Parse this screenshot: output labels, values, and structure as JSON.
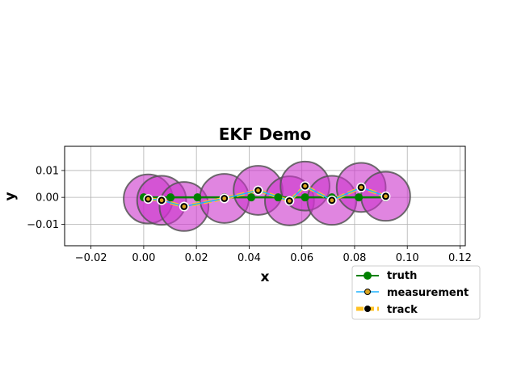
{
  "chart_data": {
    "type": "line",
    "title": "EKF Demo",
    "xlabel": "x",
    "ylabel": "y",
    "xlim": [
      -0.03,
      0.122
    ],
    "ylim": [
      -0.018,
      0.019
    ],
    "xticks": [
      -0.02,
      0.0,
      0.02,
      0.04,
      0.06,
      0.08,
      0.1,
      0.12
    ],
    "xtick_labels": [
      "−0.02",
      "0.00",
      "0.02",
      "0.04",
      "0.06",
      "0.08",
      "0.10",
      "0.12"
    ],
    "yticks": [
      -0.01,
      0.0,
      0.01
    ],
    "ytick_labels": [
      "−0.01",
      "0.00",
      "0.01"
    ],
    "grid": true,
    "legend_position": "lower-right, outside below axes",
    "series": [
      {
        "name": "truth",
        "color": "#008000",
        "x": [
          0.0,
          0.0102,
          0.0204,
          0.0306,
          0.0408,
          0.051,
          0.0612,
          0.0714,
          0.0816,
          0.0918
        ],
        "y": [
          0.0,
          0.0,
          0.0,
          0.0,
          0.0,
          0.0,
          0.0,
          0.0,
          0.0,
          0.0
        ]
      },
      {
        "name": "measurement",
        "color": "#1eb4ff",
        "marker_face": "#daa520",
        "x": [
          0.0017,
          0.0068,
          0.0153,
          0.0306,
          0.0434,
          0.0553,
          0.0612,
          0.0714,
          0.0825,
          0.0918
        ],
        "y": [
          -0.0006,
          -0.0011,
          -0.0034,
          -0.0004,
          0.0026,
          -0.0013,
          0.0042,
          -0.0011,
          0.0037,
          0.0004
        ]
      },
      {
        "name": "track",
        "color": "#ffc125",
        "marker_face": "#000000",
        "x": [
          0.0017,
          0.0068,
          0.0153,
          0.0306,
          0.0434,
          0.0553,
          0.0612,
          0.0714,
          0.0825,
          0.0918
        ],
        "y": [
          -0.0006,
          -0.0011,
          -0.0034,
          -0.0004,
          0.0026,
          -0.0013,
          0.0042,
          -0.0011,
          0.0037,
          0.0004
        ]
      }
    ],
    "covariance_ellipses": {
      "fill": "#cc33cc",
      "edge": "#555555",
      "radius_x": 0.0093,
      "centers_x": [
        0.0017,
        0.0068,
        0.0153,
        0.0306,
        0.0434,
        0.0553,
        0.0612,
        0.0714,
        0.0825,
        0.0918
      ],
      "centers_y": [
        -0.0006,
        -0.0011,
        -0.0034,
        -0.0004,
        0.0026,
        -0.0013,
        0.0042,
        -0.0011,
        0.0037,
        0.0004
      ]
    }
  }
}
